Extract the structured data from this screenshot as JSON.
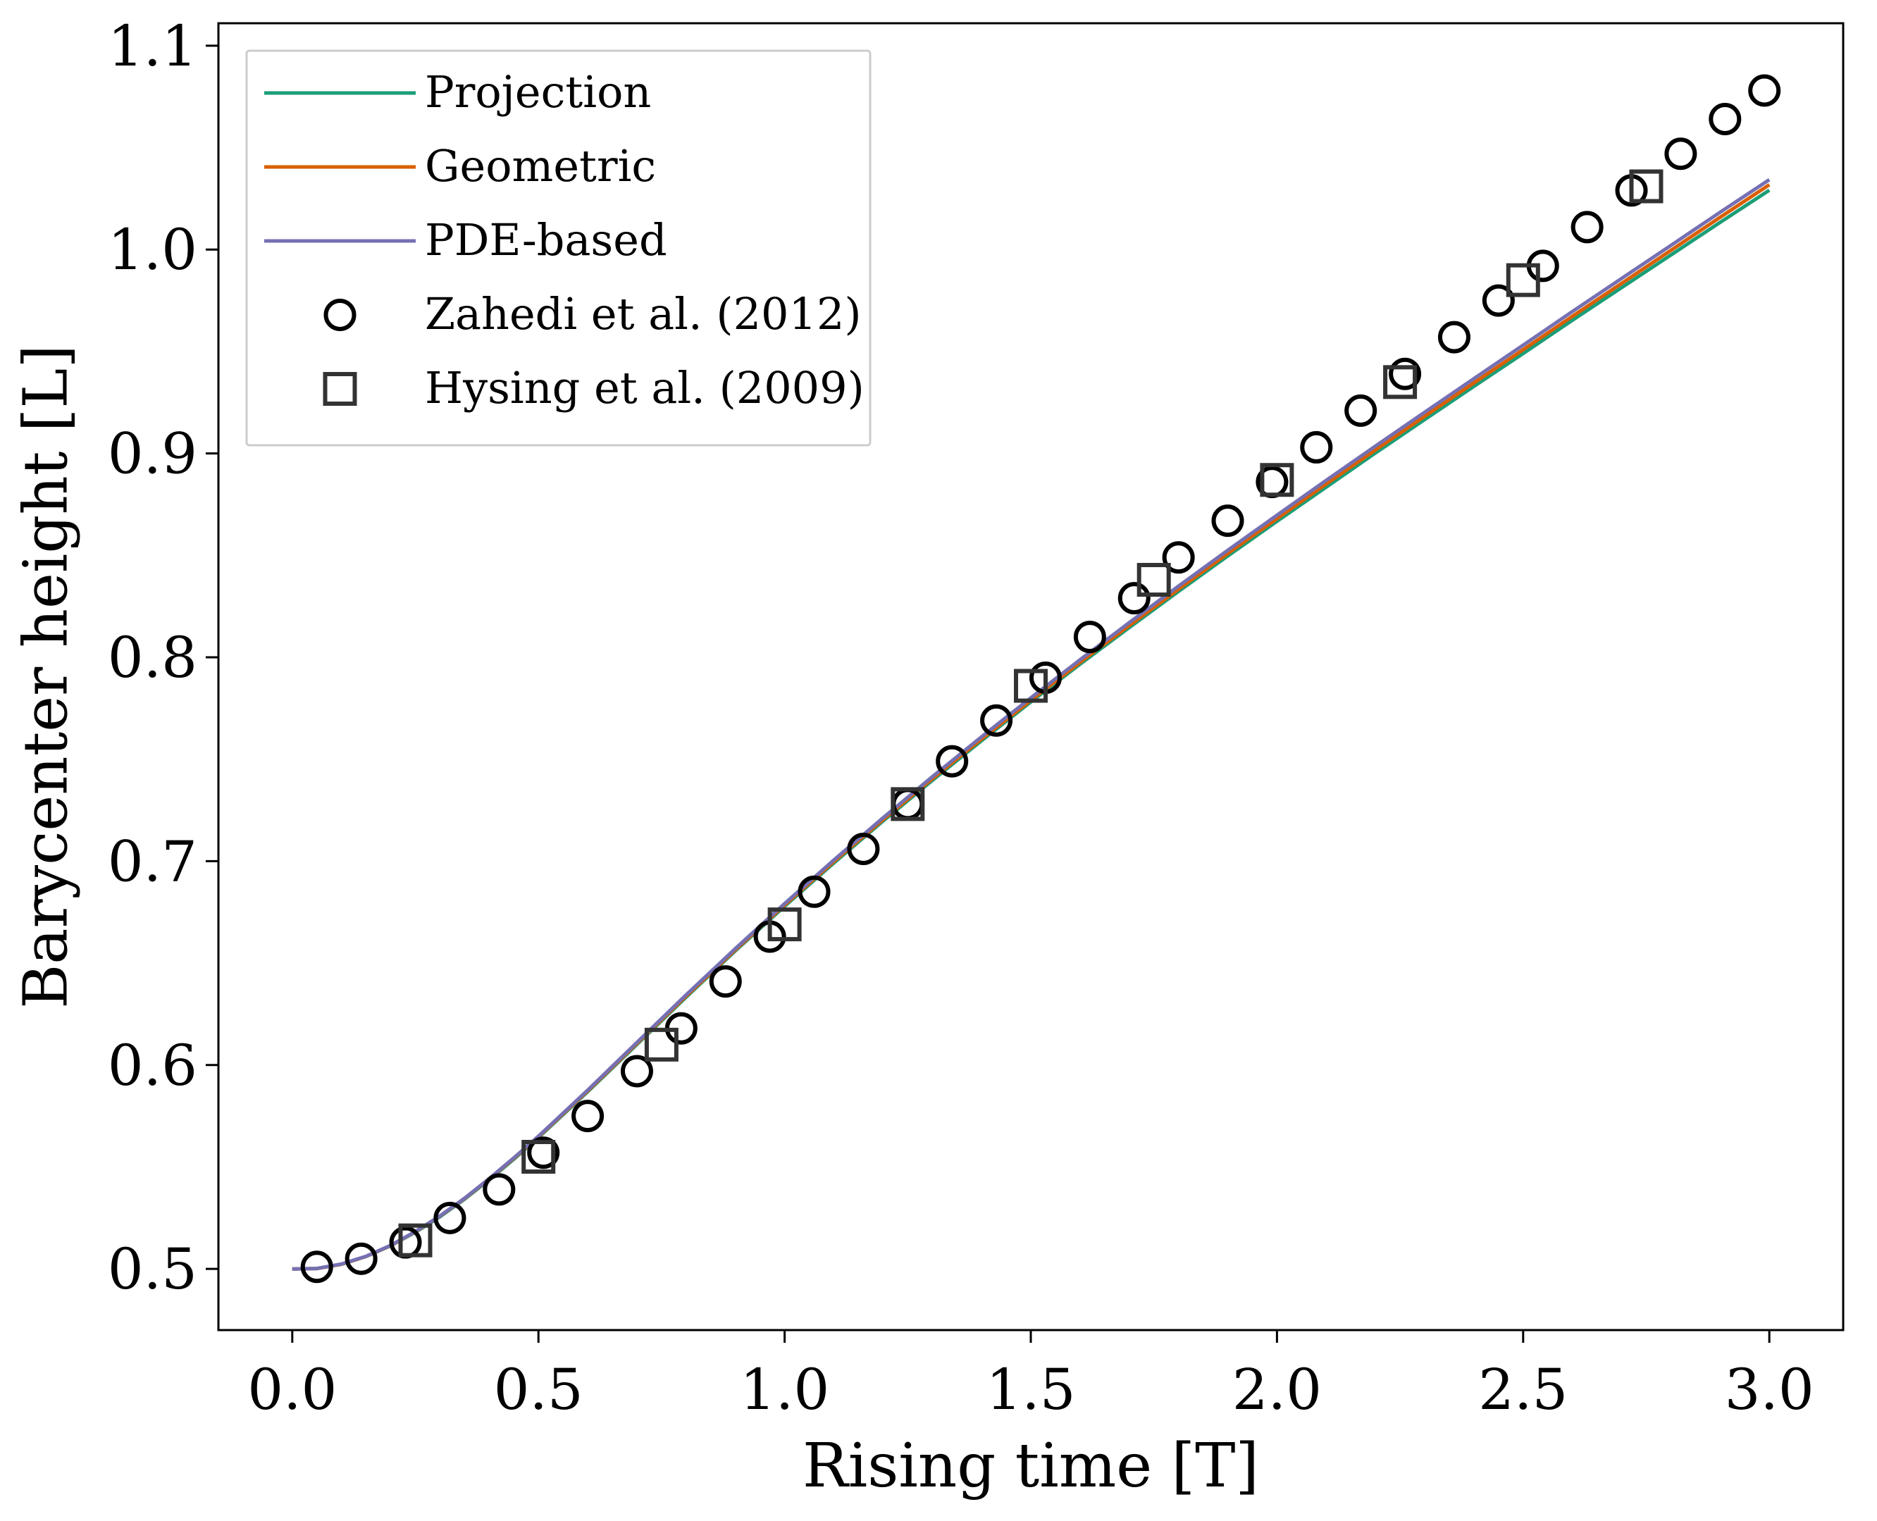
{
  "chart_data": {
    "type": "line",
    "xlabel": "Rising time [T]",
    "ylabel": "Barycenter height [L]",
    "xlim": [
      -0.15,
      3.15
    ],
    "ylim": [
      0.47,
      1.111
    ],
    "x_ticks": [
      0.0,
      0.5,
      1.0,
      1.5,
      2.0,
      2.5,
      3.0
    ],
    "x_tick_labels": [
      "0.0",
      "0.5",
      "1.0",
      "1.5",
      "2.0",
      "2.5",
      "3.0"
    ],
    "y_ticks": [
      0.5,
      0.6,
      0.7,
      0.8,
      0.9,
      1.0,
      1.1
    ],
    "y_tick_labels": [
      "0.5",
      "0.6",
      "0.7",
      "0.8",
      "0.9",
      "1.0",
      "1.1"
    ],
    "grid": false,
    "legend_position": "top-left",
    "series": [
      {
        "name": "Projection",
        "kind": "line",
        "color": "#1b9e77",
        "x": [
          0.0,
          0.05,
          0.1,
          0.15,
          0.2,
          0.25,
          0.3,
          0.35,
          0.4,
          0.45,
          0.5,
          0.6,
          0.7,
          0.8,
          0.9,
          1.0,
          1.1,
          1.2,
          1.3,
          1.4,
          1.5,
          1.6,
          1.7,
          1.8,
          1.9,
          2.0,
          2.1,
          2.2,
          2.3,
          2.4,
          2.5,
          2.6,
          2.7,
          2.8,
          2.9,
          3.0
        ],
        "y": [
          0.5,
          0.5002,
          0.5023,
          0.5061,
          0.5114,
          0.518,
          0.5256,
          0.5342,
          0.5437,
          0.5538,
          0.5644,
          0.5869,
          0.6101,
          0.6333,
          0.656,
          0.6779,
          0.6991,
          0.7197,
          0.7396,
          0.7591,
          0.7781,
          0.7966,
          0.8146,
          0.8323,
          0.8497,
          0.8667,
          0.8835,
          0.9002,
          0.9166,
          0.9329,
          0.949,
          0.9653,
          0.9813,
          0.9973,
          1.0133,
          1.0291
        ]
      },
      {
        "name": "Geometric",
        "kind": "line",
        "color": "#d95f02",
        "x": [
          0.0,
          0.05,
          0.1,
          0.15,
          0.2,
          0.25,
          0.3,
          0.35,
          0.4,
          0.45,
          0.5,
          0.6,
          0.7,
          0.8,
          0.9,
          1.0,
          1.1,
          1.2,
          1.3,
          1.4,
          1.5,
          1.6,
          1.7,
          1.8,
          1.9,
          2.0,
          2.1,
          2.2,
          2.3,
          2.4,
          2.5,
          2.6,
          2.7,
          2.8,
          2.9,
          3.0
        ],
        "y": [
          0.5,
          0.5002,
          0.5023,
          0.5061,
          0.5115,
          0.5182,
          0.5259,
          0.5345,
          0.5441,
          0.5542,
          0.5648,
          0.5873,
          0.6106,
          0.6338,
          0.6565,
          0.6785,
          0.6998,
          0.7204,
          0.7404,
          0.7599,
          0.7789,
          0.7975,
          0.8156,
          0.8334,
          0.8509,
          0.868,
          0.885,
          0.9017,
          0.9182,
          0.9346,
          0.9509,
          0.9673,
          0.9834,
          0.9996,
          1.0158,
          1.0318
        ]
      },
      {
        "name": "PDE-based",
        "kind": "line",
        "color": "#7570b3",
        "x": [
          0.0,
          0.05,
          0.1,
          0.15,
          0.2,
          0.25,
          0.3,
          0.35,
          0.4,
          0.45,
          0.5,
          0.6,
          0.7,
          0.8,
          0.9,
          1.0,
          1.1,
          1.2,
          1.3,
          1.4,
          1.5,
          1.6,
          1.7,
          1.8,
          1.9,
          2.0,
          2.1,
          2.2,
          2.3,
          2.4,
          2.5,
          2.6,
          2.7,
          2.8,
          2.9,
          3.0
        ],
        "y": [
          0.5,
          0.5002,
          0.5024,
          0.5062,
          0.5116,
          0.5183,
          0.526,
          0.5347,
          0.5443,
          0.5545,
          0.5651,
          0.5877,
          0.6111,
          0.6344,
          0.6571,
          0.6792,
          0.7006,
          0.7213,
          0.7414,
          0.761,
          0.7801,
          0.7988,
          0.817,
          0.8349,
          0.8525,
          0.8697,
          0.8868,
          0.9036,
          0.9202,
          0.9367,
          0.9531,
          0.9696,
          0.9858,
          1.002,
          1.0183,
          1.0343
        ]
      },
      {
        "name": "Zahedi et al. (2012)",
        "kind": "scatter",
        "marker": "circle",
        "color": "#000000",
        "x": [
          0.05,
          0.14,
          0.23,
          0.32,
          0.42,
          0.51,
          0.6,
          0.7,
          0.79,
          0.88,
          0.97,
          1.06,
          1.16,
          1.25,
          1.34,
          1.43,
          1.53,
          1.62,
          1.71,
          1.8,
          1.9,
          1.99,
          2.08,
          2.17,
          2.26,
          2.36,
          2.45,
          2.54,
          2.63,
          2.72,
          2.82,
          2.91,
          2.99
        ],
        "y": [
          0.501,
          0.505,
          0.513,
          0.525,
          0.539,
          0.557,
          0.575,
          0.597,
          0.618,
          0.641,
          0.663,
          0.685,
          0.706,
          0.728,
          0.749,
          0.769,
          0.79,
          0.81,
          0.829,
          0.849,
          0.867,
          0.886,
          0.903,
          0.921,
          0.939,
          0.957,
          0.975,
          0.992,
          1.011,
          1.029,
          1.047,
          1.064,
          1.078
        ]
      },
      {
        "name": "Hysing et al. (2009)",
        "kind": "scatter",
        "marker": "square",
        "color": "#333333",
        "x": [
          0.25,
          0.5,
          0.75,
          1.0,
          1.25,
          1.5,
          1.75,
          2.0,
          2.25,
          2.5,
          2.75
        ],
        "y": [
          0.514,
          0.555,
          0.61,
          0.669,
          0.728,
          0.786,
          0.838,
          0.887,
          0.935,
          0.985,
          1.031
        ]
      }
    ]
  }
}
